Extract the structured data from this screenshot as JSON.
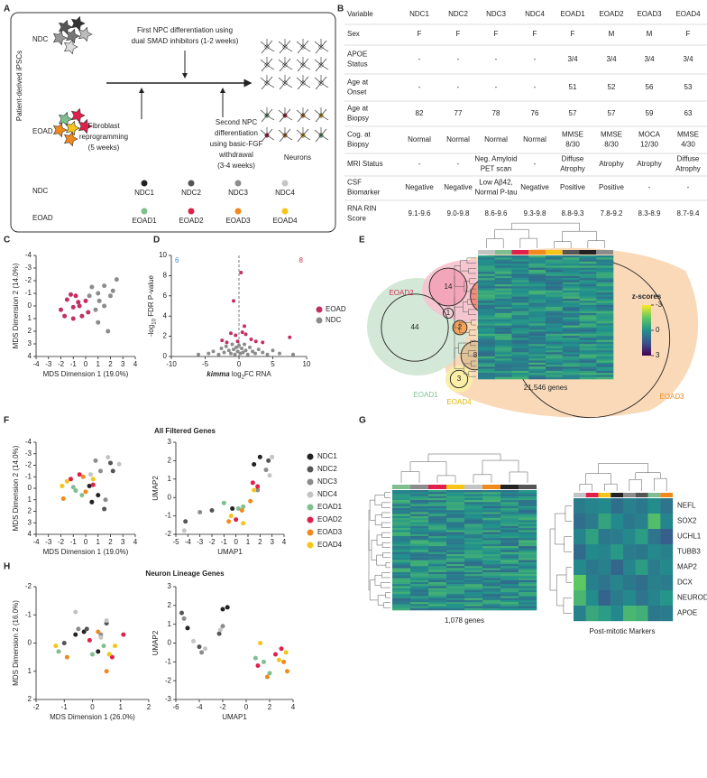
{
  "panel_labels": [
    "A",
    "B",
    "C",
    "D",
    "E",
    "F",
    "G",
    "H"
  ],
  "diagram_a": {
    "side_label": "Patient-derived iPSCs",
    "row_labels": [
      "NDC",
      "EOAD"
    ],
    "step1": [
      "First NPC differentiation using",
      "dual SMAD inhibitors (1-2 weeks)"
    ],
    "step_fibroblast": [
      "Fibroblast",
      "reprogramming",
      "(5 weeks)"
    ],
    "step2": [
      "Second NPC",
      "differentiation",
      "using basic-FGF",
      "withdrawal",
      "(3-4 weeks)"
    ],
    "result": "Neurons",
    "legend_labels": [
      "NDC",
      "EOAD"
    ],
    "ndc": [
      {
        "name": "NDC1",
        "color": "#222222"
      },
      {
        "name": "NDC2",
        "color": "#555555"
      },
      {
        "name": "NDC3",
        "color": "#8c8c8c"
      },
      {
        "name": "NDC4",
        "color": "#c4c4c4"
      }
    ],
    "eoad": [
      {
        "name": "EOAD1",
        "color": "#7fbf8f"
      },
      {
        "name": "EOAD2",
        "color": "#e0204a"
      },
      {
        "name": "EOAD3",
        "color": "#f08a1c"
      },
      {
        "name": "EOAD4",
        "color": "#f5c518"
      }
    ]
  },
  "table_b": {
    "header": [
      "Variable",
      "NDC1",
      "NDC2",
      "NDC3",
      "NDC4",
      "EOAD1",
      "EOAD2",
      "EOAD3",
      "EOAD4"
    ],
    "rows": [
      [
        "Sex",
        "F",
        "F",
        "F",
        "F",
        "F",
        "M",
        "M",
        "F"
      ],
      [
        [
          "APOE",
          "Status"
        ],
        "-",
        "-",
        "-",
        "-",
        "3/4",
        "3/4",
        "3/4",
        "3/4"
      ],
      [
        [
          "Age at",
          "Onset"
        ],
        "-",
        "-",
        "-",
        "-",
        "51",
        "52",
        "56",
        "53"
      ],
      [
        [
          "Age at",
          "Biopsy"
        ],
        "82",
        "77",
        "78",
        "76",
        "57",
        "57",
        "59",
        "63"
      ],
      [
        [
          "Cog. at",
          "Biopsy"
        ],
        "Normal",
        "Normal",
        "Normal",
        "Normal",
        [
          "MMSE",
          "8/30"
        ],
        [
          "MMSE",
          "8/30"
        ],
        [
          "MOCA",
          "12/30"
        ],
        [
          "MMSE",
          "4/30"
        ]
      ],
      [
        "MRI Status",
        "-",
        "-",
        [
          "Neg. Amyloid",
          "PET scan"
        ],
        "-",
        [
          "Diffuse",
          "Atrophy"
        ],
        "Atrophy",
        "Atrophy",
        [
          "Diffuse",
          "Atrophy"
        ]
      ],
      [
        [
          "CSF",
          "Biomarker"
        ],
        "Negative",
        "Negative",
        [
          "Low Aβ42,",
          "Normal P-tau"
        ],
        "Negative",
        "Positive",
        "Positive",
        "-",
        "-"
      ],
      [
        [
          "RNA RIN",
          "Score"
        ],
        "9.1-9.6",
        "9.0-9.8",
        "8.6-9.6",
        "9.3-9.8",
        "8.8-9.3",
        "7.8-9.2",
        "8.3-8.9",
        "8.7-9.4"
      ]
    ]
  },
  "chart_data": [
    {
      "type": "scatter",
      "x_label": "MDS Dimension 1 (19.0%)",
      "y_label": "MDS Dimension 2 (14.0%)",
      "xlim": [
        -4,
        4
      ],
      "xticks": [
        -4,
        -3,
        -2,
        -1,
        0,
        1,
        2,
        3,
        4
      ],
      "ylim": [
        -4,
        4
      ],
      "yticks": [
        -4,
        -3,
        -2,
        -1,
        0,
        1,
        2,
        3,
        4
      ],
      "y_inverted": true,
      "series": [
        {
          "color": "#c2305f",
          "x": [
            -1.5,
            -1.2,
            -0.8,
            -1.0,
            -0.5,
            0.0,
            -1.7,
            -1.0,
            -0.3,
            -2.0,
            -0.6,
            0.2
          ],
          "y": [
            -0.5,
            -0.9,
            -0.8,
            0.1,
            0.0,
            -0.4,
            0.8,
            1.0,
            0.8,
            0.3,
            -0.3,
            0.5
          ]
        },
        {
          "color": "#8c8c8c",
          "x": [
            2.5,
            1.5,
            0.5,
            1.0,
            2.0,
            2.2,
            1.5,
            0.8,
            1.0,
            1.8,
            0.3,
            1.1
          ],
          "y": [
            -2.1,
            -1.6,
            -1.5,
            -1.0,
            -0.8,
            -1.2,
            0.0,
            0.3,
            1.3,
            2.0,
            -0.8,
            -0.4
          ]
        }
      ]
    },
    {
      "type": "scatter",
      "x_label": [
        {
          "text": "kimma",
          "style": "italic-bold"
        },
        {
          "text": " log"
        },
        {
          "text": "2",
          "style": "sub"
        },
        {
          "text": "FC RNA"
        }
      ],
      "y_label": [
        {
          "text": "-log"
        },
        {
          "text": "10",
          "style": "sub"
        },
        {
          "text": " FDR P-value"
        }
      ],
      "xlim": [
        -10,
        10
      ],
      "xticks": [
        -10,
        -5,
        0,
        5,
        10
      ],
      "ylim": [
        0,
        10
      ],
      "yticks": [
        0,
        2,
        4,
        6,
        8,
        10
      ],
      "counts": [
        {
          "text": "6",
          "color": "#3a8fd6"
        },
        {
          "text": "8",
          "color": "#d0305a"
        }
      ],
      "series": [
        {
          "name": "EOAD",
          "color": "#c2305f",
          "x": [
            -2.5,
            -1.2,
            -0.8,
            -0.5,
            -0.2,
            -1.8,
            0.3,
            0.5,
            1.0,
            1.8,
            2.5,
            3.5,
            7.5,
            0.8
          ],
          "y": [
            1.6,
            2.3,
            5.5,
            2.1,
            1.5,
            1.4,
            8.3,
            2.4,
            2.2,
            1.7,
            1.5,
            1.4,
            1.9,
            3.0
          ]
        },
        {
          "name": "NDC",
          "color": "#8c8c8c",
          "x": [
            -6.0,
            -4.5,
            -3.8,
            -3.0,
            -2.6,
            -2.2,
            -1.9,
            -1.5,
            -1.2,
            -1.0,
            -0.8,
            -0.6,
            -0.4,
            -0.2,
            0.0,
            0.2,
            0.4,
            0.6,
            0.8,
            1.0,
            1.3,
            1.6,
            2.0,
            2.4,
            2.9,
            3.5,
            4.2,
            5.0,
            6.0,
            8.0
          ],
          "y": [
            0.2,
            0.3,
            0.5,
            0.2,
            0.8,
            0.4,
            1.0,
            0.6,
            0.3,
            1.2,
            0.7,
            0.2,
            0.9,
            0.5,
            1.1,
            0.3,
            0.8,
            0.4,
            1.2,
            0.6,
            0.2,
            0.9,
            0.5,
            0.3,
            0.7,
            0.4,
            0.2,
            0.6,
            0.3,
            0.2
          ]
        }
      ]
    },
    {
      "type": "scatter",
      "x_label": "MDS Dimension 1 (19.0%)",
      "y_label": "MDS Dimension 2 (14.0%)",
      "xlim": [
        -4,
        4
      ],
      "xticks": [
        -4,
        -3,
        -2,
        -1,
        0,
        1,
        2,
        3,
        4
      ],
      "ylim": [
        -4,
        4
      ],
      "yticks": [
        -4,
        -3,
        -2,
        -1,
        0,
        1,
        2,
        3,
        4
      ],
      "y_inverted": true,
      "series": [
        {
          "color": "#222222",
          "x": [
            1.0,
            0.5,
            0.3
          ],
          "y": [
            0.6,
            1.2,
            -0.2
          ]
        },
        {
          "color": "#555555",
          "x": [
            2.0,
            1.5,
            2.2
          ],
          "y": [
            -2.2,
            1.8,
            -1.5
          ]
        },
        {
          "color": "#8c8c8c",
          "x": [
            1.2,
            0.8,
            1.6
          ],
          "y": [
            -1.5,
            -2.4,
            1.0
          ]
        },
        {
          "color": "#c4c4c4",
          "x": [
            2.7,
            1.8,
            0.4
          ],
          "y": [
            -2.1,
            -2.7,
            -1.2
          ]
        },
        {
          "color": "#7fbf8f",
          "x": [
            -0.8,
            -0.3,
            -1.0
          ],
          "y": [
            0.2,
            0.6,
            -0.1
          ]
        },
        {
          "color": "#e0204a",
          "x": [
            -1.2,
            0.6,
            -0.5
          ],
          "y": [
            -0.8,
            -0.3,
            -1.2
          ]
        },
        {
          "color": "#f08a1c",
          "x": [
            -1.8,
            -0.2,
            0.0
          ],
          "y": [
            0.9,
            -1.0,
            0.3
          ]
        },
        {
          "color": "#f5c518",
          "x": [
            -1.5,
            -1.9,
            0.6
          ],
          "y": [
            -0.6,
            -0.2,
            -0.8
          ]
        }
      ]
    },
    {
      "type": "scatter",
      "x_label": "UMAP1",
      "y_label": "UMAP2",
      "xlim": [
        -5,
        4
      ],
      "xticks": [
        -5,
        -4,
        -3,
        -2,
        -1,
        0,
        1,
        2,
        3,
        4
      ],
      "ylim": [
        -2,
        3
      ],
      "yticks": [
        -2,
        -1,
        0,
        1,
        2,
        3
      ],
      "series": [
        {
          "color": "#222222",
          "x": [
            2.0,
            -0.3,
            1.5
          ],
          "y": [
            2.2,
            -0.6,
            1.8
          ]
        },
        {
          "color": "#555555",
          "x": [
            -4.2,
            2.7,
            -2.0
          ],
          "y": [
            -1.3,
            2.0,
            -0.7
          ]
        },
        {
          "color": "#8c8c8c",
          "x": [
            2.5,
            -3.0,
            1.8
          ],
          "y": [
            1.5,
            -0.8,
            0.4
          ]
        },
        {
          "color": "#c4c4c4",
          "x": [
            3.0,
            -4.3,
            2.8
          ],
          "y": [
            2.2,
            -1.8,
            1.2
          ]
        },
        {
          "color": "#7fbf8f",
          "x": [
            0.2,
            0.6,
            -1.0
          ],
          "y": [
            -0.6,
            -0.5,
            -0.3
          ]
        },
        {
          "color": "#e0204a",
          "x": [
            1.4,
            0.0,
            1.8
          ],
          "y": [
            0.8,
            -1.2,
            0.6
          ]
        },
        {
          "color": "#f08a1c",
          "x": [
            1.2,
            -0.6,
            0.5
          ],
          "y": [
            -0.2,
            -1.3,
            -0.7
          ]
        },
        {
          "color": "#f5c518",
          "x": [
            0.6,
            1.5,
            -0.4
          ],
          "y": [
            -1.4,
            0.4,
            -1.0
          ]
        }
      ]
    },
    {
      "type": "scatter",
      "x_label": "MDS Dimension 1 (26.0%)",
      "y_label": "MDS Dimension 2 (16.0%)",
      "xlim": [
        -2,
        2
      ],
      "xticks": [
        -2,
        -1,
        0,
        1,
        2
      ],
      "ylim": [
        -2,
        2
      ],
      "yticks": [
        -2,
        -1,
        0,
        1,
        2
      ],
      "y_inverted": true,
      "series": [
        {
          "color": "#222222",
          "x": [
            -0.3,
            0.2,
            -0.6
          ],
          "y": [
            -0.4,
            0.3,
            -0.3
          ]
        },
        {
          "color": "#555555",
          "x": [
            -1.0,
            0.5,
            -0.2
          ],
          "y": [
            0.0,
            -0.7,
            -0.5
          ]
        },
        {
          "color": "#8c8c8c",
          "x": [
            0.3,
            -0.5,
            0.6
          ],
          "y": [
            -0.3,
            -0.5,
            0.4
          ]
        },
        {
          "color": "#c4c4c4",
          "x": [
            -0.6,
            0.5,
            0.3
          ],
          "y": [
            -1.1,
            -0.8,
            -0.2
          ]
        },
        {
          "color": "#7fbf8f",
          "x": [
            -1.2,
            0.0,
            0.4
          ],
          "y": [
            0.3,
            0.4,
            0.1
          ]
        },
        {
          "color": "#e0204a",
          "x": [
            1.1,
            0.7,
            -0.1
          ],
          "y": [
            -0.3,
            0.5,
            -0.1
          ]
        },
        {
          "color": "#f08a1c",
          "x": [
            -0.9,
            0.5,
            0.2
          ],
          "y": [
            0.5,
            1.0,
            -0.4
          ]
        },
        {
          "color": "#f5c518",
          "x": [
            -1.3,
            0.6,
            0.8
          ],
          "y": [
            0.1,
            0.4,
            0.1
          ]
        }
      ]
    },
    {
      "type": "scatter",
      "x_label": "UMAP1",
      "y_label": "UMAP2",
      "xlim": [
        -6,
        4
      ],
      "xticks": [
        -6,
        -4,
        -2,
        0,
        2,
        4
      ],
      "ylim": [
        -3,
        3
      ],
      "yticks": [
        -3,
        -2,
        -1,
        0,
        1,
        2,
        3
      ],
      "series": [
        {
          "color": "#222222",
          "x": [
            -2.0,
            -5.0,
            -1.6
          ],
          "y": [
            1.8,
            0.8,
            1.9
          ]
        },
        {
          "color": "#555555",
          "x": [
            -5.5,
            -2.3,
            -4.0
          ],
          "y": [
            1.6,
            0.5,
            -0.2
          ]
        },
        {
          "color": "#8c8c8c",
          "x": [
            -5.3,
            -3.8,
            -2.0
          ],
          "y": [
            1.3,
            -0.5,
            0.9
          ]
        },
        {
          "color": "#c4c4c4",
          "x": [
            -3.5,
            -4.5,
            -2.2
          ],
          "y": [
            -0.3,
            0.1,
            0.7
          ]
        },
        {
          "color": "#7fbf8f",
          "x": [
            1.5,
            2.0,
            0.8
          ],
          "y": [
            -1.0,
            -1.6,
            -0.8
          ]
        },
        {
          "color": "#e0204a",
          "x": [
            3.0,
            2.5,
            1.0
          ],
          "y": [
            -0.3,
            -0.6,
            -1.2
          ]
        },
        {
          "color": "#f08a1c",
          "x": [
            3.2,
            3.5,
            1.8
          ],
          "y": [
            -1.0,
            -1.5,
            -1.8
          ]
        },
        {
          "color": "#f5c518",
          "x": [
            1.2,
            2.8,
            3.4
          ],
          "y": [
            0.0,
            -0.9,
            -0.5
          ]
        }
      ]
    }
  ],
  "venn_e": {
    "counts": [
      14,
      12,
      1,
      2,
      2,
      44,
      8,
      3,
      245
    ],
    "labels": [
      {
        "text": "EOAD2",
        "color": "#d0305a"
      },
      {
        "text": "EOAD1",
        "color": "#7fbf8f"
      },
      {
        "text": "EOAD4",
        "color": "#e0b400"
      },
      {
        "text": "EOAD3",
        "color": "#f08a1c"
      }
    ]
  },
  "panel_titles": [
    "All Filtered Genes",
    "Neuron Lineage Genes"
  ],
  "legend_fh": [
    {
      "name": "NDC1",
      "color": "#222222"
    },
    {
      "name": "NDC2",
      "color": "#555555"
    },
    {
      "name": "NDC3",
      "color": "#8c8c8c"
    },
    {
      "name": "NDC4",
      "color": "#c4c4c4"
    },
    {
      "name": "EOAD1",
      "color": "#7fbf8f"
    },
    {
      "name": "EOAD2",
      "color": "#e0204a"
    },
    {
      "name": "EOAD3",
      "color": "#f08a1c"
    },
    {
      "name": "EOAD4",
      "color": "#f5c518"
    }
  ],
  "heatmaps_g": {
    "colorbar": {
      "title": "z-scores",
      "lim": [
        -3,
        3
      ],
      "ticks": [
        -3,
        0,
        3
      ]
    },
    "captions": [
      "21,546 genes",
      "1,078 genes",
      "Post-mitotic Markers"
    ],
    "column_colors": [
      [
        "#c4c4c4",
        "#7fbf8f",
        "#e0204a",
        "#f08a1c",
        "#f5c518",
        "#555555",
        "#222222",
        "#8c8c8c"
      ],
      [
        "#7fbf8f",
        "#8c8c8c",
        "#e0204a",
        "#f5c518",
        "#c4c4c4",
        "#f08a1c",
        "#222222",
        "#555555"
      ],
      [
        "#c4c4c4",
        "#e0204a",
        "#f5c518",
        "#222222",
        "#8c8c8c",
        "#555555",
        "#7fbf8f",
        "#f08a1c"
      ]
    ],
    "genes": [
      "NEFL",
      "SOX2",
      "UCHL1",
      "TUBB3",
      "MAP2",
      "DCX",
      "NEUROD1",
      "APOE"
    ],
    "values": [
      [
        0.5,
        0.3,
        0.2,
        0.8,
        0.4,
        0.6,
        0.1,
        0.7
      ],
      [
        0.8,
        0.5,
        -0.5,
        0.2,
        0.6,
        0.4,
        -1.2,
        0.3
      ],
      [
        0.3,
        -0.4,
        0.6,
        0.5,
        0.2,
        -0.3,
        0.7,
        1.2
      ],
      [
        0.9,
        0.2,
        0.3,
        -0.2,
        0.5,
        0.6,
        0.2,
        0.4
      ],
      [
        0.2,
        0.6,
        0.4,
        1.0,
        0.3,
        -0.3,
        0.5,
        0.2
      ],
      [
        -1.5,
        0.4,
        0.7,
        0.3,
        0.6,
        0.8,
        0.4,
        0.5
      ],
      [
        -1.0,
        0.1,
        1.1,
        0.5,
        0.2,
        0.7,
        0.3,
        -0.1
      ],
      [
        0.4,
        -0.6,
        -0.3,
        0.2,
        -1.0,
        -0.8,
        0.6,
        0.5
      ]
    ]
  }
}
